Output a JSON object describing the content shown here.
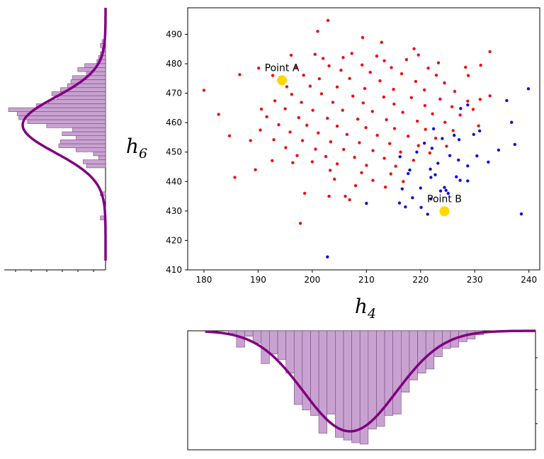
{
  "chart_data": {
    "type": "scatter",
    "title": "",
    "xlabel": "h",
    "xlabel_sub": "4",
    "ylabel": "h",
    "ylabel_sub": "6",
    "xlim": [
      177,
      242
    ],
    "ylim": [
      410,
      499
    ],
    "xticks": [
      180,
      190,
      200,
      210,
      220,
      230,
      240
    ],
    "yticks": [
      410,
      420,
      430,
      440,
      450,
      460,
      470,
      480,
      490
    ],
    "xtick_labels": [
      "180",
      "190",
      "200",
      "210",
      "220",
      "230",
      "240"
    ],
    "ytick_labels": [
      "410",
      "420",
      "430",
      "440",
      "450",
      "460",
      "470",
      "480",
      "490"
    ],
    "grid": false,
    "colors": {
      "red": "#ee1111",
      "blue": "#1111dd",
      "highlight": "#ffd700",
      "curve": "#800080",
      "hist_fill": "#c8a2d0",
      "hist_edge": "#7a4a80"
    },
    "series": [
      {
        "name": "red",
        "points": [
          [
            202.9,
            494.7
          ],
          [
            201.0,
            491.0
          ],
          [
            209.3,
            488.9
          ],
          [
            212.8,
            487.3
          ],
          [
            218.8,
            485.1
          ],
          [
            196.1,
            482.9
          ],
          [
            200.5,
            483.2
          ],
          [
            232.8,
            484.1
          ],
          [
            207.3,
            483.5
          ],
          [
            211.9,
            482.6
          ],
          [
            219.6,
            483.0
          ],
          [
            202.0,
            481.8
          ],
          [
            205.7,
            482.1
          ],
          [
            213.3,
            481.0
          ],
          [
            217.4,
            481.4
          ],
          [
            223.3,
            480.3
          ],
          [
            186.6,
            476.3
          ],
          [
            190.1,
            478.5
          ],
          [
            192.7,
            476.0
          ],
          [
            197.0,
            478.9
          ],
          [
            203.1,
            479.3
          ],
          [
            209.2,
            479.6
          ],
          [
            214.6,
            478.7
          ],
          [
            221.4,
            478.5
          ],
          [
            228.3,
            478.8
          ],
          [
            231.1,
            479.5
          ],
          [
            205.3,
            477.8
          ],
          [
            210.7,
            477.1
          ],
          [
            216.5,
            476.6
          ],
          [
            222.9,
            476.1
          ],
          [
            228.8,
            476.0
          ],
          [
            198.4,
            476.1
          ],
          [
            201.3,
            474.9
          ],
          [
            206.9,
            475.0
          ],
          [
            212.5,
            474.2
          ],
          [
            219.1,
            474.0
          ],
          [
            224.4,
            473.5
          ],
          [
            195.3,
            472.2
          ],
          [
            199.6,
            472.4
          ],
          [
            204.6,
            472.1
          ],
          [
            209.7,
            471.6
          ],
          [
            215.0,
            471.3
          ],
          [
            220.7,
            471.1
          ],
          [
            226.3,
            470.6
          ],
          [
            180.0,
            471.0
          ],
          [
            196.2,
            469.6
          ],
          [
            201.7,
            469.8
          ],
          [
            207.5,
            469.0
          ],
          [
            213.2,
            468.7
          ],
          [
            218.3,
            468.5
          ],
          [
            223.6,
            468.0
          ],
          [
            228.7,
            467.3
          ],
          [
            232.8,
            469.1
          ],
          [
            231.0,
            467.9
          ],
          [
            193.1,
            467.4
          ],
          [
            198.0,
            466.9
          ],
          [
            203.8,
            466.9
          ],
          [
            209.4,
            466.7
          ],
          [
            215.1,
            466.3
          ],
          [
            220.8,
            465.8
          ],
          [
            225.8,
            465.4
          ],
          [
            229.7,
            464.5
          ],
          [
            190.6,
            464.6
          ],
          [
            195.0,
            464.7
          ],
          [
            200.1,
            464.2
          ],
          [
            205.6,
            464.2
          ],
          [
            211.1,
            463.8
          ],
          [
            216.7,
            463.5
          ],
          [
            222.2,
            463.0
          ],
          [
            227.3,
            462.6
          ],
          [
            182.7,
            462.8
          ],
          [
            191.6,
            462.0
          ],
          [
            197.5,
            461.7
          ],
          [
            202.8,
            461.5
          ],
          [
            208.4,
            461.2
          ],
          [
            213.7,
            461.0
          ],
          [
            219.4,
            460.5
          ],
          [
            224.5,
            460.1
          ],
          [
            193.8,
            459.3
          ],
          [
            199.0,
            459.1
          ],
          [
            204.6,
            458.8
          ],
          [
            209.9,
            458.3
          ],
          [
            215.2,
            458.0
          ],
          [
            220.9,
            457.7
          ],
          [
            226.0,
            457.3
          ],
          [
            230.7,
            458.9
          ],
          [
            190.4,
            457.5
          ],
          [
            195.9,
            456.8
          ],
          [
            201.1,
            456.5
          ],
          [
            206.4,
            456.0
          ],
          [
            212.0,
            455.7
          ],
          [
            217.7,
            455.4
          ],
          [
            222.8,
            454.7
          ],
          [
            184.7,
            455.5
          ],
          [
            188.6,
            453.9
          ],
          [
            192.9,
            454.2
          ],
          [
            198.2,
            453.9
          ],
          [
            203.4,
            453.5
          ],
          [
            208.7,
            453.2
          ],
          [
            214.3,
            452.9
          ],
          [
            219.6,
            452.2
          ],
          [
            224.8,
            452.0
          ],
          [
            195.1,
            451.5
          ],
          [
            200.6,
            451.0
          ],
          [
            205.8,
            450.9
          ],
          [
            211.2,
            450.5
          ],
          [
            216.3,
            450.0
          ],
          [
            221.7,
            449.7
          ],
          [
            197.2,
            448.8
          ],
          [
            202.5,
            448.5
          ],
          [
            207.8,
            448.2
          ],
          [
            213.3,
            447.9
          ],
          [
            218.7,
            447.2
          ],
          [
            192.6,
            447.1
          ],
          [
            196.4,
            446.4
          ],
          [
            200.0,
            446.7
          ],
          [
            204.6,
            446.0
          ],
          [
            210.0,
            445.5
          ],
          [
            215.4,
            445.2
          ],
          [
            203.3,
            443.8
          ],
          [
            209.1,
            443.0
          ],
          [
            214.5,
            442.6
          ],
          [
            185.7,
            441.4
          ],
          [
            189.5,
            444.0
          ],
          [
            204.1,
            440.8
          ],
          [
            211.2,
            440.4
          ],
          [
            216.8,
            440.0
          ],
          [
            208.0,
            438.6
          ],
          [
            213.5,
            438.1
          ],
          [
            198.6,
            436.0
          ],
          [
            203.1,
            435.0
          ],
          [
            206.1,
            435.0
          ],
          [
            206.9,
            433.8
          ],
          [
            197.8,
            425.8
          ]
        ]
      },
      {
        "name": "blue",
        "points": [
          [
            239.9,
            471.5
          ],
          [
            235.9,
            467.5
          ],
          [
            228.7,
            466.0
          ],
          [
            227.4,
            464.8
          ],
          [
            236.8,
            460.1
          ],
          [
            222.4,
            457.9
          ],
          [
            224.0,
            454.6
          ],
          [
            230.9,
            457.2
          ],
          [
            229.8,
            456.0
          ],
          [
            226.2,
            455.7
          ],
          [
            237.4,
            452.6
          ],
          [
            227.1,
            454.2
          ],
          [
            220.7,
            453.0
          ],
          [
            222.1,
            451.3
          ],
          [
            219.3,
            450.0
          ],
          [
            225.4,
            448.8
          ],
          [
            216.2,
            448.4
          ],
          [
            227.0,
            447.3
          ],
          [
            223.2,
            446.2
          ],
          [
            221.8,
            444.2
          ],
          [
            218.0,
            443.9
          ],
          [
            230.4,
            448.7
          ],
          [
            232.5,
            446.6
          ],
          [
            228.7,
            445.3
          ],
          [
            234.4,
            450.7
          ],
          [
            222.7,
            442.3
          ],
          [
            217.7,
            442.7
          ],
          [
            226.6,
            441.6
          ],
          [
            227.3,
            440.4
          ],
          [
            221.9,
            441.4
          ],
          [
            228.7,
            440.2
          ],
          [
            224.4,
            438.0
          ],
          [
            220.0,
            437.8
          ],
          [
            216.6,
            437.5
          ],
          [
            223.7,
            436.8
          ],
          [
            224.7,
            437.0
          ],
          [
            225.1,
            436.0
          ],
          [
            218.5,
            434.5
          ],
          [
            221.9,
            434.1
          ],
          [
            210.0,
            432.6
          ],
          [
            216.1,
            432.7
          ],
          [
            217.2,
            431.4
          ],
          [
            220.1,
            431.2
          ],
          [
            221.3,
            428.9
          ],
          [
            238.6,
            429.0
          ],
          [
            202.8,
            414.4
          ]
        ]
      },
      {
        "name": "highlight",
        "points": [
          [
            194.4,
            474.4
          ],
          [
            224.4,
            429.9
          ]
        ],
        "labels": [
          "Point A",
          "Point B"
        ]
      }
    ],
    "hist_x": {
      "bin_edges": [
        187.0,
        188.42,
        189.84,
        191.26,
        192.68,
        194.1,
        195.52,
        196.94,
        198.36,
        199.78,
        201.2,
        202.62,
        204.04,
        205.46,
        206.88,
        208.3,
        209.72,
        211.14,
        212.56,
        213.98,
        215.4,
        216.82,
        218.24,
        219.66,
        221.08,
        222.5,
        223.92,
        225.34,
        226.76,
        228.18,
        229.6,
        231.02
      ],
      "counts": [
        2,
        12,
        4,
        9,
        24,
        17,
        21,
        31,
        54,
        58,
        62,
        75,
        61,
        78,
        80,
        82,
        83,
        72,
        70,
        62,
        61,
        45,
        36,
        31,
        28,
        19,
        13,
        12,
        8,
        6,
        3
      ],
      "mean": 208.0,
      "sd": 8.0
    },
    "hist_y": {
      "bin_edges": [
        421.0,
        422.3,
        423.6,
        424.9,
        426.2,
        427.5,
        428.8,
        430.1,
        431.4,
        432.7,
        434.0,
        435.3,
        436.6,
        437.9,
        439.2,
        440.5,
        441.8,
        443.1,
        444.4,
        445.7,
        447.0,
        448.3,
        449.6,
        450.9,
        452.2,
        453.5,
        454.8,
        456.1,
        457.4,
        458.7,
        460.0,
        461.3,
        462.6,
        463.9,
        465.2,
        466.5,
        467.8,
        469.1,
        470.4,
        471.7,
        473.0,
        474.3,
        475.6,
        476.9,
        478.2,
        479.5,
        480.8,
        482.1,
        483.4,
        484.7
      ],
      "counts": [
        0,
        0,
        0,
        0,
        3,
        0,
        0,
        0,
        0,
        0,
        3,
        0,
        0,
        0,
        0,
        0,
        0,
        11,
        13,
        4,
        7,
        17,
        27,
        26,
        17,
        25,
        19,
        34,
        45,
        50,
        51,
        56,
        40,
        33,
        28,
        31,
        26,
        22,
        20,
        19,
        11,
        16,
        12,
        5,
        4,
        3,
        2,
        3,
        2
      ],
      "mean": 457.0,
      "sd": 9.0
    }
  }
}
